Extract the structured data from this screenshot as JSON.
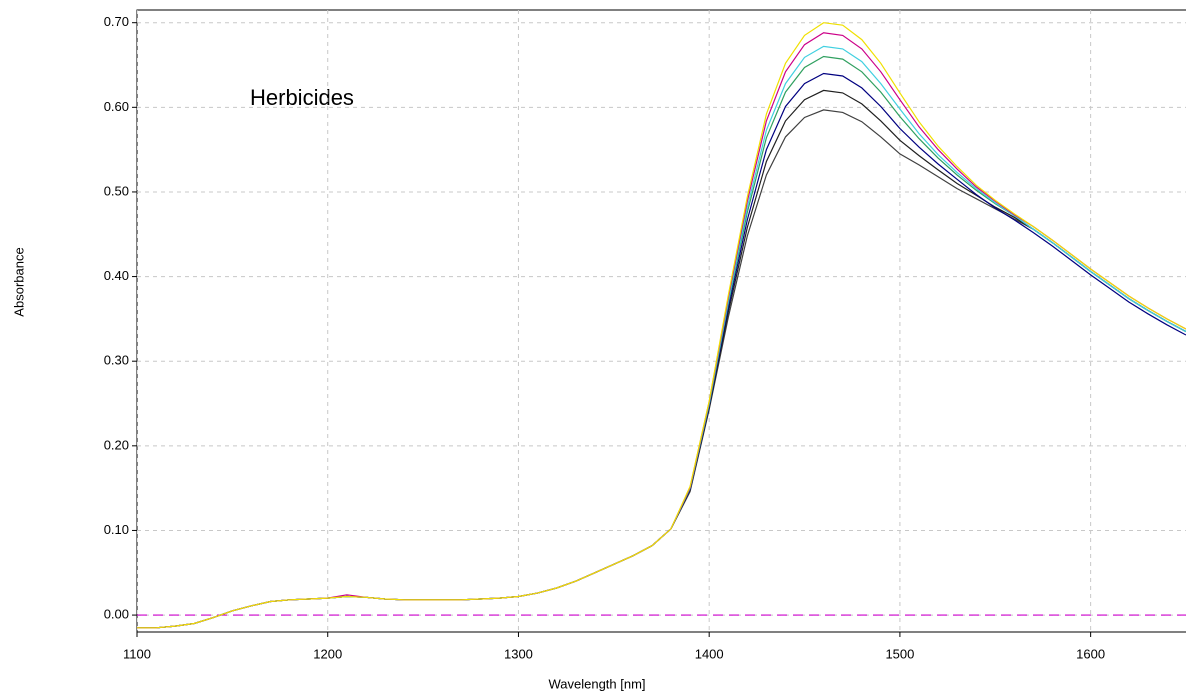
{
  "chart_data": {
    "type": "line",
    "annotation": "Herbicides",
    "x_label": "Wavelength [nm]",
    "y_label": "Absorbance",
    "x": [
      1100,
      1110,
      1120,
      1130,
      1140,
      1150,
      1160,
      1170,
      1180,
      1190,
      1200,
      1210,
      1220,
      1230,
      1240,
      1250,
      1260,
      1270,
      1280,
      1290,
      1300,
      1310,
      1320,
      1330,
      1340,
      1350,
      1360,
      1370,
      1380,
      1390,
      1400,
      1410,
      1420,
      1430,
      1440,
      1450,
      1460,
      1470,
      1480,
      1490,
      1500,
      1510,
      1520,
      1530,
      1540,
      1550,
      1560,
      1570,
      1580,
      1590,
      1600,
      1610,
      1620,
      1630,
      1640,
      1650
    ],
    "xlim": [
      1100,
      1650
    ],
    "xticks": [
      1100,
      1200,
      1300,
      1400,
      1500,
      1600
    ],
    "ylim": [
      -0.02,
      0.715
    ],
    "yticks": [
      {
        "value": 0,
        "label": "0.00"
      },
      {
        "value": 0.1,
        "label": "0.10"
      },
      {
        "value": 0.2,
        "label": "0.20"
      },
      {
        "value": 0.3,
        "label": "0.30"
      },
      {
        "value": 0.4,
        "label": "0.40"
      },
      {
        "value": 0.5,
        "label": "0.50"
      },
      {
        "value": 0.6,
        "label": "0.60"
      },
      {
        "value": 0.7,
        "label": "0.70"
      }
    ],
    "grid": true,
    "reference_line": {
      "value": 0,
      "color": "#cc00cc"
    },
    "series": [
      {
        "color": "#404040",
        "values": [
          -0.015,
          -0.015,
          -0.013,
          -0.01,
          -0.003,
          0.005,
          0.011,
          0.016,
          0.018,
          0.019,
          0.02,
          0.022,
          0.021,
          0.019,
          0.018,
          0.018,
          0.018,
          0.018,
          0.019,
          0.02,
          0.022,
          0.026,
          0.032,
          0.04,
          0.05,
          0.06,
          0.07,
          0.082,
          0.102,
          0.146,
          0.243,
          0.352,
          0.448,
          0.52,
          0.565,
          0.588,
          0.597,
          0.594,
          0.583,
          0.565,
          0.545,
          0.532,
          0.518,
          0.504,
          0.492,
          0.48,
          0.468,
          0.456,
          0.44,
          0.423,
          0.406,
          0.39,
          0.374,
          0.36,
          0.347,
          0.335
        ]
      },
      {
        "color": "#202020",
        "values": [
          -0.015,
          -0.015,
          -0.013,
          -0.01,
          -0.003,
          0.005,
          0.011,
          0.016,
          0.018,
          0.019,
          0.02,
          0.022,
          0.021,
          0.019,
          0.018,
          0.018,
          0.018,
          0.018,
          0.019,
          0.02,
          0.022,
          0.026,
          0.032,
          0.04,
          0.05,
          0.06,
          0.07,
          0.082,
          0.102,
          0.148,
          0.245,
          0.358,
          0.458,
          0.536,
          0.584,
          0.609,
          0.62,
          0.617,
          0.604,
          0.584,
          0.561,
          0.543,
          0.526,
          0.51,
          0.496,
          0.482,
          0.47,
          0.456,
          0.44,
          0.423,
          0.406,
          0.39,
          0.374,
          0.36,
          0.347,
          0.335
        ]
      },
      {
        "color": "#000080",
        "values": [
          -0.015,
          -0.015,
          -0.013,
          -0.01,
          -0.003,
          0.005,
          0.011,
          0.016,
          0.018,
          0.019,
          0.02,
          0.022,
          0.021,
          0.019,
          0.018,
          0.018,
          0.018,
          0.018,
          0.019,
          0.02,
          0.022,
          0.026,
          0.032,
          0.04,
          0.05,
          0.06,
          0.07,
          0.082,
          0.102,
          0.149,
          0.247,
          0.363,
          0.467,
          0.55,
          0.601,
          0.628,
          0.64,
          0.637,
          0.623,
          0.601,
          0.575,
          0.553,
          0.533,
          0.515,
          0.497,
          0.481,
          0.467,
          0.452,
          0.436,
          0.419,
          0.402,
          0.386,
          0.37,
          0.356,
          0.343,
          0.331
        ]
      },
      {
        "color": "#30a060",
        "values": [
          -0.015,
          -0.015,
          -0.013,
          -0.01,
          -0.003,
          0.005,
          0.011,
          0.016,
          0.018,
          0.019,
          0.02,
          0.022,
          0.021,
          0.019,
          0.018,
          0.018,
          0.018,
          0.018,
          0.019,
          0.02,
          0.022,
          0.026,
          0.032,
          0.04,
          0.05,
          0.06,
          0.07,
          0.082,
          0.102,
          0.15,
          0.249,
          0.368,
          0.476,
          0.564,
          0.618,
          0.647,
          0.66,
          0.657,
          0.642,
          0.618,
          0.589,
          0.563,
          0.54,
          0.52,
          0.502,
          0.486,
          0.472,
          0.456,
          0.44,
          0.423,
          0.406,
          0.39,
          0.374,
          0.36,
          0.347,
          0.335
        ]
      },
      {
        "color": "#40d0e0",
        "values": [
          -0.015,
          -0.015,
          -0.013,
          -0.01,
          -0.003,
          0.005,
          0.011,
          0.016,
          0.018,
          0.019,
          0.02,
          0.022,
          0.021,
          0.019,
          0.018,
          0.018,
          0.018,
          0.018,
          0.019,
          0.02,
          0.022,
          0.026,
          0.032,
          0.04,
          0.05,
          0.06,
          0.07,
          0.082,
          0.102,
          0.15,
          0.25,
          0.371,
          0.482,
          0.573,
          0.628,
          0.659,
          0.672,
          0.669,
          0.654,
          0.628,
          0.598,
          0.569,
          0.544,
          0.523,
          0.504,
          0.487,
          0.472,
          0.456,
          0.44,
          0.423,
          0.406,
          0.39,
          0.374,
          0.36,
          0.347,
          0.335
        ]
      },
      {
        "color": "#cc0088",
        "values": [
          -0.015,
          -0.015,
          -0.013,
          -0.01,
          -0.003,
          0.005,
          0.011,
          0.016,
          0.018,
          0.019,
          0.02,
          0.024,
          0.021,
          0.019,
          0.018,
          0.018,
          0.018,
          0.018,
          0.019,
          0.02,
          0.022,
          0.026,
          0.032,
          0.04,
          0.05,
          0.06,
          0.07,
          0.082,
          0.102,
          0.151,
          0.252,
          0.375,
          0.489,
          0.584,
          0.642,
          0.674,
          0.688,
          0.685,
          0.669,
          0.642,
          0.609,
          0.577,
          0.55,
          0.527,
          0.506,
          0.489,
          0.473,
          0.459,
          0.443,
          0.426,
          0.409,
          0.393,
          0.377,
          0.363,
          0.35,
          0.338
        ]
      },
      {
        "color": "#f0e000",
        "values": [
          -0.015,
          -0.015,
          -0.013,
          -0.01,
          -0.003,
          0.005,
          0.011,
          0.016,
          0.018,
          0.019,
          0.02,
          0.022,
          0.021,
          0.019,
          0.018,
          0.018,
          0.018,
          0.018,
          0.019,
          0.02,
          0.022,
          0.026,
          0.032,
          0.04,
          0.05,
          0.06,
          0.07,
          0.082,
          0.102,
          0.152,
          0.253,
          0.378,
          0.494,
          0.592,
          0.652,
          0.685,
          0.7,
          0.697,
          0.68,
          0.652,
          0.617,
          0.583,
          0.554,
          0.53,
          0.508,
          0.49,
          0.474,
          0.459,
          0.443,
          0.426,
          0.409,
          0.393,
          0.377,
          0.363,
          0.35,
          0.338
        ]
      }
    ]
  }
}
